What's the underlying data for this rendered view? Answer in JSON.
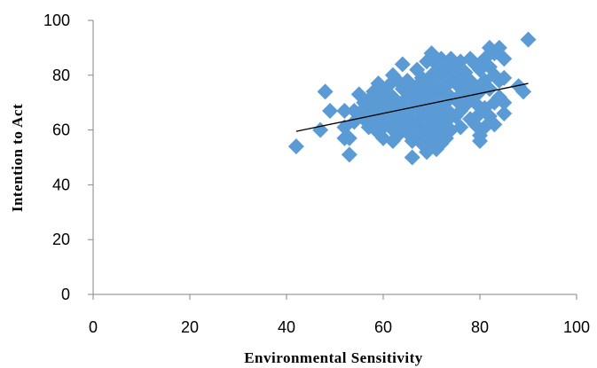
{
  "chart_data": {
    "type": "scatter",
    "xlabel": "Environmental Sensitivity",
    "ylabel": "Intention to Act",
    "xlim": [
      0,
      100
    ],
    "ylim": [
      0,
      100
    ],
    "x_ticks": [
      "0",
      "20",
      "40",
      "60",
      "80",
      "100"
    ],
    "y_ticks": [
      "0",
      "20",
      "40",
      "60",
      "80",
      "100"
    ],
    "grid": false,
    "legend": "none",
    "series": [
      {
        "marker": "diamond",
        "color": "#5B9BD5",
        "points": [
          [
            42,
            54
          ],
          [
            47,
            60
          ],
          [
            48,
            74
          ],
          [
            49,
            67
          ],
          [
            52,
            61
          ],
          [
            52,
            57
          ],
          [
            52,
            67
          ],
          [
            53,
            51
          ],
          [
            53,
            57
          ],
          [
            54,
            63
          ],
          [
            54,
            67
          ],
          [
            55,
            73
          ],
          [
            55,
            66
          ],
          [
            56,
            70
          ],
          [
            56,
            64
          ],
          [
            57,
            71
          ],
          [
            57,
            66
          ],
          [
            57,
            61
          ],
          [
            58,
            74
          ],
          [
            58,
            68
          ],
          [
            58,
            62
          ],
          [
            59,
            77
          ],
          [
            59,
            70
          ],
          [
            59,
            65
          ],
          [
            59,
            59
          ],
          [
            60,
            73
          ],
          [
            60,
            66
          ],
          [
            60,
            61
          ],
          [
            60,
            57
          ],
          [
            61,
            76
          ],
          [
            61,
            69
          ],
          [
            61,
            63
          ],
          [
            62,
            80
          ],
          [
            62,
            72
          ],
          [
            62,
            66
          ],
          [
            62,
            60
          ],
          [
            62,
            56
          ],
          [
            63,
            78
          ],
          [
            63,
            70
          ],
          [
            63,
            64
          ],
          [
            63,
            58
          ],
          [
            64,
            84
          ],
          [
            64,
            75
          ],
          [
            64,
            68
          ],
          [
            64,
            61
          ],
          [
            65,
            78
          ],
          [
            65,
            72
          ],
          [
            65,
            65
          ],
          [
            65,
            59
          ],
          [
            66,
            74
          ],
          [
            66,
            68
          ],
          [
            66,
            62
          ],
          [
            66,
            56
          ],
          [
            66,
            50
          ],
          [
            67,
            82
          ],
          [
            67,
            76
          ],
          [
            67,
            70
          ],
          [
            67,
            64
          ],
          [
            67,
            58
          ],
          [
            68,
            79
          ],
          [
            68,
            73
          ],
          [
            68,
            67
          ],
          [
            68,
            61
          ],
          [
            68,
            55
          ],
          [
            69,
            85
          ],
          [
            69,
            77
          ],
          [
            69,
            71
          ],
          [
            69,
            65
          ],
          [
            69,
            59
          ],
          [
            69,
            52
          ],
          [
            70,
            88
          ],
          [
            70,
            80
          ],
          [
            70,
            74
          ],
          [
            70,
            68
          ],
          [
            70,
            62
          ],
          [
            70,
            56
          ],
          [
            71,
            84
          ],
          [
            71,
            76
          ],
          [
            71,
            70
          ],
          [
            71,
            64
          ],
          [
            71,
            58
          ],
          [
            71,
            53
          ],
          [
            72,
            86
          ],
          [
            72,
            80
          ],
          [
            72,
            74
          ],
          [
            72,
            67
          ],
          [
            72,
            61
          ],
          [
            72,
            55
          ],
          [
            73,
            82
          ],
          [
            73,
            76
          ],
          [
            73,
            70
          ],
          [
            73,
            63
          ],
          [
            73,
            57
          ],
          [
            74,
            86
          ],
          [
            74,
            79
          ],
          [
            74,
            72
          ],
          [
            74,
            66
          ],
          [
            74,
            60
          ],
          [
            75,
            83
          ],
          [
            75,
            77
          ],
          [
            75,
            71
          ],
          [
            75,
            65
          ],
          [
            76,
            85
          ],
          [
            76,
            79
          ],
          [
            76,
            73
          ],
          [
            76,
            67
          ],
          [
            76,
            61
          ],
          [
            77,
            81
          ],
          [
            77,
            75
          ],
          [
            77,
            69
          ],
          [
            78,
            86
          ],
          [
            78,
            78
          ],
          [
            78,
            72
          ],
          [
            78,
            64
          ],
          [
            79,
            84
          ],
          [
            79,
            76
          ],
          [
            79,
            70
          ],
          [
            79,
            62
          ],
          [
            80,
            82
          ],
          [
            80,
            74
          ],
          [
            80,
            66
          ],
          [
            80,
            58
          ],
          [
            80,
            56
          ],
          [
            81,
            86
          ],
          [
            81,
            78
          ],
          [
            81,
            68
          ],
          [
            81,
            61
          ],
          [
            82,
            90
          ],
          [
            82,
            83
          ],
          [
            82,
            75
          ],
          [
            82,
            65
          ],
          [
            83,
            88
          ],
          [
            83,
            80
          ],
          [
            83,
            70
          ],
          [
            83,
            62
          ],
          [
            84,
            90
          ],
          [
            84,
            78
          ],
          [
            84,
            72
          ],
          [
            85,
            86
          ],
          [
            85,
            79
          ],
          [
            85,
            66
          ],
          [
            85,
            70
          ],
          [
            88,
            76
          ],
          [
            89,
            74
          ],
          [
            90,
            93
          ]
        ]
      }
    ],
    "trendline": {
      "from": [
        42,
        59.5
      ],
      "to": [
        90,
        77
      ],
      "color": "#000000"
    }
  }
}
